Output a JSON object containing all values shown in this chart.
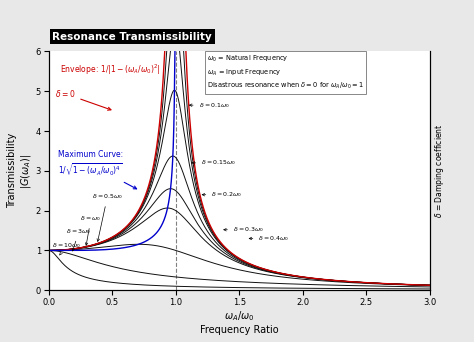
{
  "title": "Resonance Transmissibility",
  "xlabel_line1": "$\\omega_A/\\omega_0$",
  "xlabel_line2": "Frequency Ratio",
  "ylabel": "Transmissibility\n$|G(\\omega_A)|$",
  "ylabel_right": "$\\delta$ = Damping coefficient",
  "xlim": [
    0.0,
    3.0
  ],
  "ylim": [
    0.0,
    6.0
  ],
  "xticks": [
    0.0,
    0.5,
    1.0,
    1.5,
    2.0,
    2.5,
    3.0
  ],
  "yticks": [
    0,
    1,
    2,
    3,
    4,
    5,
    6
  ],
  "damping_ratios": [
    0.1,
    0.15,
    0.2,
    0.3,
    0.4,
    0.5,
    1.0,
    3.0,
    10.0
  ],
  "background_color": "#e8e8e8",
  "plot_bg": "#ffffff",
  "envelope_color": "#cc0000",
  "max_curve_color": "#0000cc",
  "curve_color": "#111111",
  "title_bg": "#000000",
  "title_fg": "#ffffff",
  "envelope_text_line1": "Envelope: $1/|1-(\\omega_A/\\omega_0)^2|$",
  "envelope_text_line2": "$\\delta = 0$",
  "max_curve_text_line1": "Maximum Curve:",
  "max_curve_text_line2": "$1/\\sqrt{1-(\\omega_A/\\omega_0)^4}$",
  "legend_line1": "$\\omega_0$ = Natural Frequency",
  "legend_line2": "$\\omega_A$ = Input Frequency",
  "legend_line3": "Disastrous resonance when $\\delta = 0$ for $\\omega_A/\\omega_0 = 1$"
}
